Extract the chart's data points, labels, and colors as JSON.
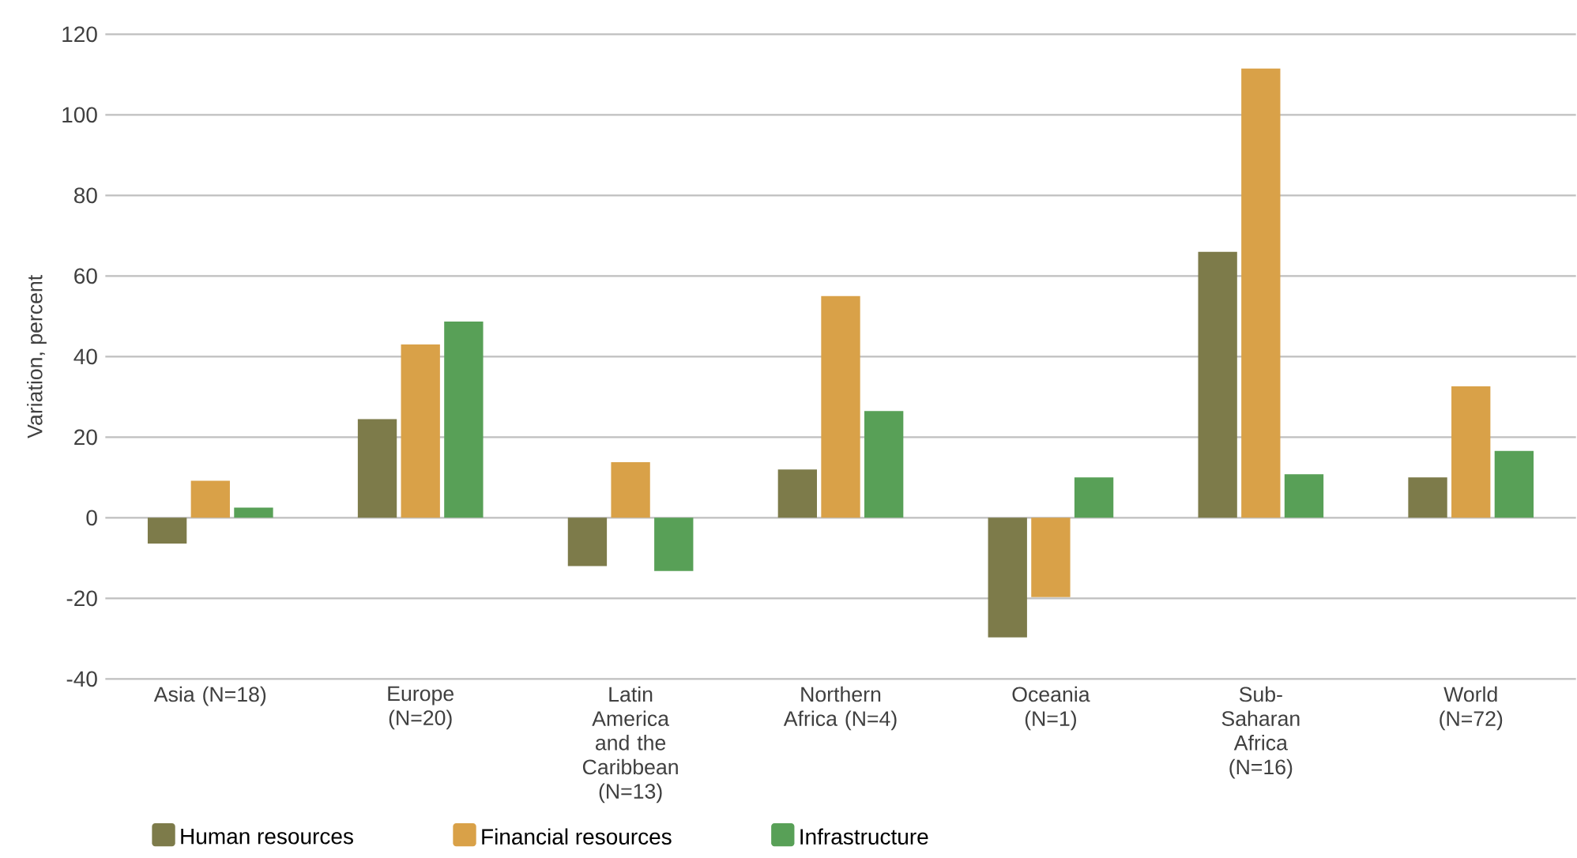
{
  "chart_data": {
    "type": "bar",
    "ylabel": "Variation, percent",
    "categories": [
      "Asia (N=18)",
      "Europe (N=20)",
      "Latin America and the Caribbean (N=13)",
      "Northern Africa (N=4)",
      "Oceania (N=1)",
      "Sub-Saharan Africa (N=16)",
      "World (N=72)"
    ],
    "series": [
      {
        "name": "Human resources",
        "color": "#7d7b4a",
        "values": [
          -6.4,
          24.5,
          -12,
          12,
          -29.7,
          66,
          10
        ]
      },
      {
        "name": "Financial resources",
        "color": "#d9a148",
        "values": [
          9.2,
          43,
          13.8,
          55,
          -19.7,
          111.5,
          32.6
        ]
      },
      {
        "name": "Infrastructure",
        "color": "#58a057",
        "values": [
          2.5,
          48.7,
          -13.2,
          26.5,
          10,
          10.8,
          16.6
        ]
      }
    ],
    "ylim": [
      -40,
      120
    ],
    "yticks": [
      -40,
      -20,
      0,
      20,
      40,
      60,
      80,
      100,
      120
    ],
    "grid": "y",
    "legend": "bottom left"
  }
}
